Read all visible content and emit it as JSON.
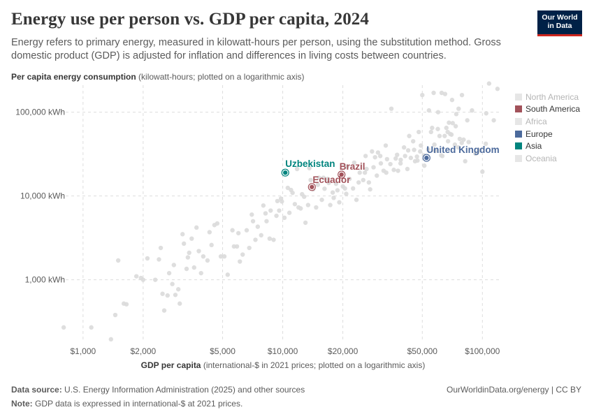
{
  "header": {
    "title": "Energy use per person vs. GDP per capita, 2024",
    "subtitle": "Energy refers to primary energy, measured in kilowatt-hours per person, using the substitution method. Gross domestic product (GDP) is adjusted for inflation and differences in living costs between countries.",
    "logo_line1": "Our World",
    "logo_line2": "in Data"
  },
  "footer": {
    "source_label": "Data source:",
    "source_text": "U.S. Energy Information Administration (2025) and other sources",
    "note_label": "Note:",
    "note_text": "GDP data is expressed in international-$ at 2021 prices.",
    "link": "OurWorldinData.org/energy | CC BY"
  },
  "colors": {
    "background_point": "#dadada",
    "South America": "#a2525a",
    "Europe": "#4c6a9c",
    "Asia": "#00847e",
    "gridline": "#dddddd"
  },
  "chart_data": {
    "type": "scatter",
    "title": "Energy use per person vs. GDP per capita, 2024",
    "ylabel_bold": "Per capita energy consumption",
    "ylabel_rest": " (kilowatt-hours; plotted on a logarithmic axis)",
    "xlabel_bold": "GDP per capita",
    "xlabel_rest": " (international-$ in 2021 prices; plotted on a logarithmic axis)",
    "x_scale": "log",
    "y_scale": "log",
    "xlim": [
      780,
      125000
    ],
    "ylim": [
      180,
      210000
    ],
    "x_ticks": [
      {
        "value": 1000,
        "label": "$1,000"
      },
      {
        "value": 2000,
        "label": "$2,000"
      },
      {
        "value": 5000,
        "label": "$5,000"
      },
      {
        "value": 10000,
        "label": "$10,000"
      },
      {
        "value": 20000,
        "label": "$20,000"
      },
      {
        "value": 50000,
        "label": "$50,000"
      },
      {
        "value": 100000,
        "label": "$100,000"
      }
    ],
    "y_ticks": [
      {
        "value": 1000,
        "label": "1,000 kWh"
      },
      {
        "value": 10000,
        "label": "10,000 kWh"
      },
      {
        "value": 100000,
        "label": "100,000 kWh"
      }
    ],
    "legend": [
      {
        "name": "North America",
        "color": "#dadada",
        "muted": true
      },
      {
        "name": "South America",
        "color": "#a2525a",
        "muted": false
      },
      {
        "name": "Africa",
        "color": "#dadada",
        "muted": true
      },
      {
        "name": "Europe",
        "color": "#4c6a9c",
        "muted": false
      },
      {
        "name": "Asia",
        "color": "#00847e",
        "muted": false
      },
      {
        "name": "Oceania",
        "color": "#dadada",
        "muted": true
      }
    ],
    "legend_placement": "right",
    "grid": true,
    "highlighted": [
      {
        "name": "Uzbekistan",
        "region": "Asia",
        "x": 10300,
        "y": 19000
      },
      {
        "name": "Brazil",
        "region": "South America",
        "x": 19700,
        "y": 18000
      },
      {
        "name": "Ecuador",
        "region": "South America",
        "x": 14000,
        "y": 12800
      },
      {
        "name": "United Kingdom",
        "region": "Europe",
        "x": 52500,
        "y": 28500
      }
    ],
    "points": [
      [
        800,
        270
      ],
      [
        1100,
        270
      ],
      [
        1380,
        195
      ],
      [
        1450,
        380
      ],
      [
        1500,
        1700
      ],
      [
        1600,
        520
      ],
      [
        1650,
        510
      ],
      [
        1850,
        1100
      ],
      [
        1950,
        1050
      ],
      [
        2000,
        1000
      ],
      [
        2100,
        1800
      ],
      [
        2300,
        1000
      ],
      [
        2400,
        1750
      ],
      [
        2450,
        2400
      ],
      [
        2500,
        680
      ],
      [
        2550,
        430
      ],
      [
        2650,
        650
      ],
      [
        2700,
        1200
      ],
      [
        2800,
        890
      ],
      [
        2850,
        1500
      ],
      [
        2900,
        660
      ],
      [
        3000,
        770
      ],
      [
        3050,
        520
      ],
      [
        3150,
        3500
      ],
      [
        3200,
        2700
      ],
      [
        3350,
        1850
      ],
      [
        3400,
        2100
      ],
      [
        3500,
        3100
      ],
      [
        3600,
        1400
      ],
      [
        3700,
        4200
      ],
      [
        3800,
        2200
      ],
      [
        3900,
        1200
      ],
      [
        4000,
        1900
      ],
      [
        4200,
        1700
      ],
      [
        4400,
        2600
      ],
      [
        4550,
        4500
      ],
      [
        4700,
        4700
      ],
      [
        4900,
        1900
      ],
      [
        5100,
        1900
      ],
      [
        5300,
        1150
      ],
      [
        5600,
        3900
      ],
      [
        5700,
        2500
      ],
      [
        5900,
        2500
      ],
      [
        6100,
        1650
      ],
      [
        6300,
        2000
      ],
      [
        6600,
        3900
      ],
      [
        6800,
        2400
      ],
      [
        7000,
        6000
      ],
      [
        7300,
        3000
      ],
      [
        7500,
        4300
      ],
      [
        7800,
        3400
      ],
      [
        8000,
        7700
      ],
      [
        8300,
        5000
      ],
      [
        8600,
        3100
      ],
      [
        9000,
        3000
      ],
      [
        9300,
        5800
      ],
      [
        9600,
        6700
      ],
      [
        9900,
        8600
      ],
      [
        10200,
        5500
      ],
      [
        10600,
        12500
      ],
      [
        11000,
        11800
      ],
      [
        11500,
        8000
      ],
      [
        12000,
        7300
      ],
      [
        12500,
        10500
      ],
      [
        13000,
        4800
      ],
      [
        13400,
        7800
      ],
      [
        13800,
        15500
      ],
      [
        14200,
        12000
      ],
      [
        14700,
        7300
      ],
      [
        15200,
        16500
      ],
      [
        15700,
        9000
      ],
      [
        16200,
        12200
      ],
      [
        16800,
        16000
      ],
      [
        17300,
        7800
      ],
      [
        17800,
        11000
      ],
      [
        18500,
        14000
      ],
      [
        19200,
        8400
      ],
      [
        20000,
        13000
      ],
      [
        20800,
        10600
      ],
      [
        21600,
        16000
      ],
      [
        22500,
        12300
      ],
      [
        23400,
        9000
      ],
      [
        24300,
        19000
      ],
      [
        25300,
        15500
      ],
      [
        26300,
        21000
      ],
      [
        27400,
        12000
      ],
      [
        28500,
        22000
      ],
      [
        29600,
        17500
      ],
      [
        30800,
        30000
      ],
      [
        32000,
        20000
      ],
      [
        33300,
        27500
      ],
      [
        34600,
        24000
      ],
      [
        36000,
        20500
      ],
      [
        37400,
        31000
      ],
      [
        38900,
        24500
      ],
      [
        40500,
        38000
      ],
      [
        42100,
        21000
      ],
      [
        43800,
        28500
      ],
      [
        45500,
        35500
      ],
      [
        47300,
        26500
      ],
      [
        49200,
        40000
      ],
      [
        51200,
        23000
      ],
      [
        53200,
        29000
      ],
      [
        55300,
        58000
      ],
      [
        57500,
        41000
      ],
      [
        59800,
        63000
      ],
      [
        62200,
        30500
      ],
      [
        64700,
        52000
      ],
      [
        67300,
        45000
      ],
      [
        70000,
        54000
      ],
      [
        72800,
        41000
      ],
      [
        75700,
        38000
      ],
      [
        78800,
        43000
      ],
      [
        82000,
        26000
      ],
      [
        85300,
        44000
      ],
      [
        88700,
        105000
      ],
      [
        92300,
        32000
      ],
      [
        96000,
        35000
      ],
      [
        100000,
        19500
      ],
      [
        104000,
        42000
      ],
      [
        108000,
        220000
      ],
      [
        114000,
        80000
      ],
      [
        119000,
        190000
      ],
      [
        9800,
        9300
      ],
      [
        11200,
        10900
      ],
      [
        12800,
        9800
      ],
      [
        15000,
        13600
      ],
      [
        17000,
        14300
      ],
      [
        21000,
        22500
      ],
      [
        24000,
        14500
      ],
      [
        26000,
        30000
      ],
      [
        30000,
        33000
      ],
      [
        35000,
        110000
      ],
      [
        45000,
        45000
      ],
      [
        48000,
        58000
      ],
      [
        50000,
        160000
      ],
      [
        56000,
        65000
      ],
      [
        60000,
        100000
      ],
      [
        65000,
        165000
      ],
      [
        68000,
        75000
      ],
      [
        70500,
        140000
      ],
      [
        74000,
        95000
      ],
      [
        79000,
        160000
      ],
      [
        8700,
        6700
      ],
      [
        11800,
        21000
      ],
      [
        13600,
        21500
      ],
      [
        18000,
        9500
      ],
      [
        20500,
        12300
      ],
      [
        27000,
        14500
      ],
      [
        31000,
        24500
      ],
      [
        33000,
        19000
      ],
      [
        39000,
        27000
      ],
      [
        41000,
        30000
      ],
      [
        46000,
        26000
      ],
      [
        53500,
        36000
      ],
      [
        58000,
        34500
      ],
      [
        61000,
        52000
      ],
      [
        63000,
        30000
      ],
      [
        66000,
        65000
      ],
      [
        69000,
        55000
      ],
      [
        71000,
        74000
      ],
      [
        76000,
        110000
      ],
      [
        77000,
        48000
      ],
      [
        80500,
        47000
      ],
      [
        3300,
        1350
      ],
      [
        4300,
        3700
      ],
      [
        6000,
        3600
      ],
      [
        7100,
        5000
      ],
      [
        8200,
        6200
      ],
      [
        9400,
        8700
      ],
      [
        10800,
        6300
      ],
      [
        12300,
        7100
      ],
      [
        16000,
        16500
      ],
      [
        18800,
        11700
      ],
      [
        22800,
        25000
      ],
      [
        25800,
        19000
      ],
      [
        28000,
        34000
      ],
      [
        29000,
        29000
      ],
      [
        32800,
        40000
      ],
      [
        36800,
        28000
      ],
      [
        37800,
        20000
      ],
      [
        42500,
        35000
      ],
      [
        43000,
        52000
      ],
      [
        47000,
        29500
      ],
      [
        48800,
        34000
      ],
      [
        51000,
        30500
      ],
      [
        54000,
        105000
      ],
      [
        57000,
        170000
      ],
      [
        62500,
        170000
      ],
      [
        67000,
        58000
      ],
      [
        73500,
        68000
      ],
      [
        84000,
        80000
      ],
      [
        104500,
        97000
      ]
    ]
  }
}
